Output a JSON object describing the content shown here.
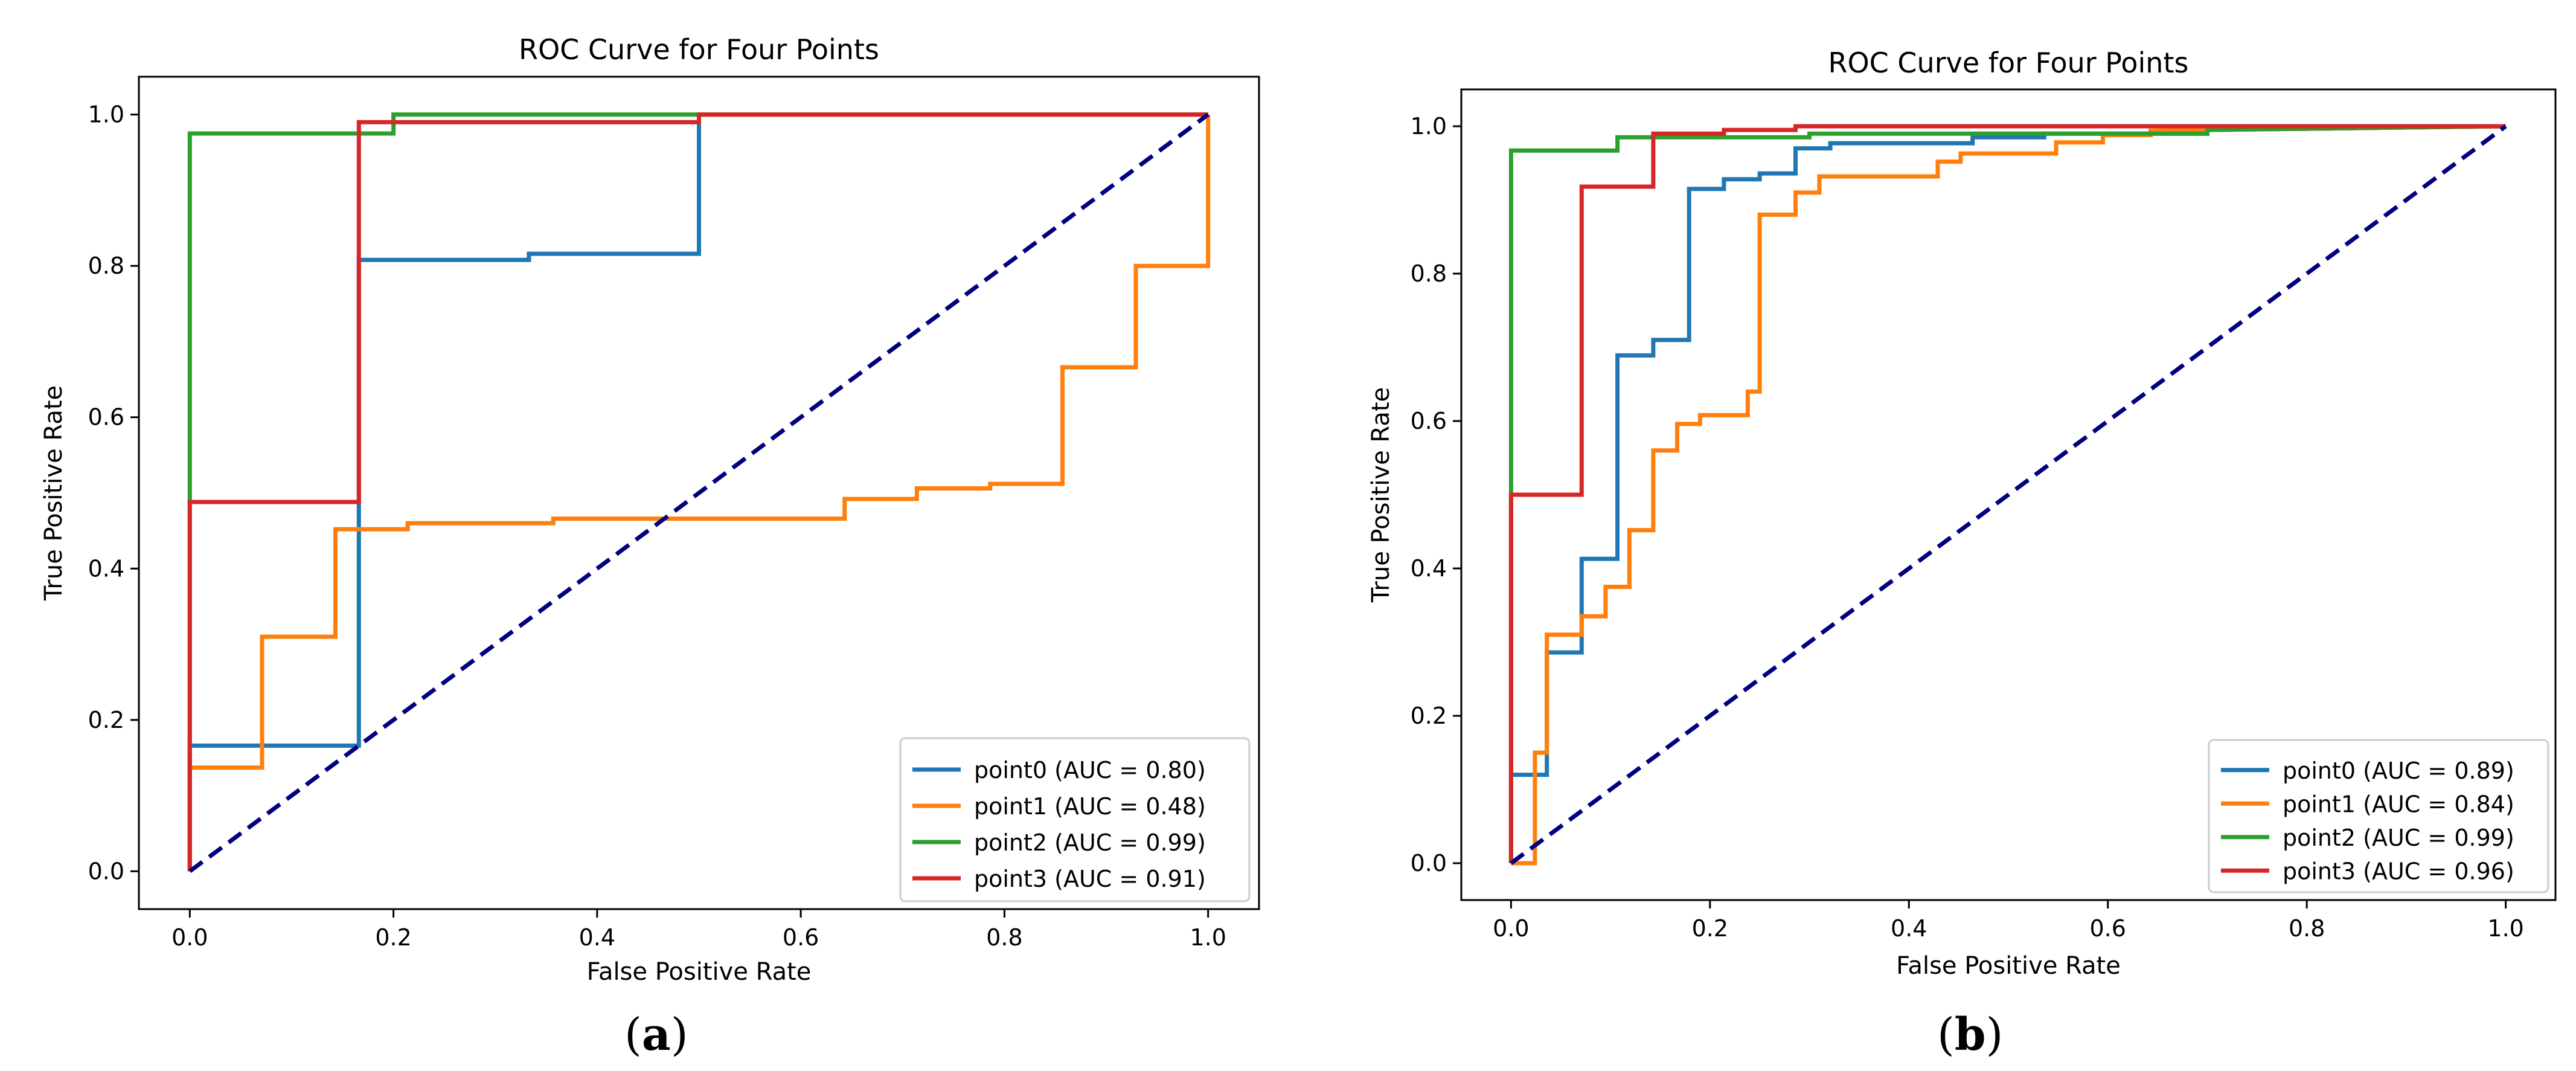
{
  "charts": [
    {
      "caption_letter": "a",
      "title": "ROC Curve for Four Points",
      "xlabel": "False Positive Rate",
      "ylabel": "True Positive Rate"
    },
    {
      "caption_letter": "b",
      "title": "ROC Curve for Four Points",
      "xlabel": "False Positive Rate",
      "ylabel": "True Positive Rate"
    }
  ],
  "chart_data": [
    {
      "type": "line",
      "title": "ROC Curve for Four Points",
      "xlabel": "False Positive Rate",
      "ylabel": "True Positive Rate",
      "xlim": [
        -0.05,
        1.05
      ],
      "ylim": [
        -0.05,
        1.05
      ],
      "xticks": [
        "0.0",
        "0.2",
        "0.4",
        "0.6",
        "0.8",
        "1.0"
      ],
      "yticks": [
        "0.0",
        "0.2",
        "0.4",
        "0.6",
        "0.8",
        "1.0"
      ],
      "grid": false,
      "legend": "lower right",
      "diagonal": {
        "from": [
          0,
          0
        ],
        "to": [
          1,
          1
        ],
        "style": "dashed",
        "color": "#000080"
      },
      "series": [
        {
          "name": "point0 (AUC = 0.80)",
          "color": "#1f77b4",
          "points": [
            [
              0,
              0
            ],
            [
              0,
              0.166
            ],
            [
              0.166,
              0.166
            ],
            [
              0.166,
              0.808
            ],
            [
              0.333,
              0.808
            ],
            [
              0.333,
              0.816
            ],
            [
              0.5,
              0.816
            ],
            [
              0.5,
              1.0
            ],
            [
              1.0,
              1.0
            ]
          ]
        },
        {
          "name": "point1 (AUC = 0.48)",
          "color": "#ff7f0e",
          "points": [
            [
              0,
              0
            ],
            [
              0,
              0.137
            ],
            [
              0.071,
              0.137
            ],
            [
              0.071,
              0.31
            ],
            [
              0.143,
              0.31
            ],
            [
              0.143,
              0.452
            ],
            [
              0.214,
              0.452
            ],
            [
              0.214,
              0.46
            ],
            [
              0.357,
              0.46
            ],
            [
              0.357,
              0.466
            ],
            [
              0.643,
              0.466
            ],
            [
              0.643,
              0.492
            ],
            [
              0.714,
              0.492
            ],
            [
              0.714,
              0.506
            ],
            [
              0.786,
              0.506
            ],
            [
              0.786,
              0.512
            ],
            [
              0.857,
              0.512
            ],
            [
              0.857,
              0.666
            ],
            [
              0.929,
              0.666
            ],
            [
              0.929,
              0.8
            ],
            [
              1.0,
              0.8
            ],
            [
              1.0,
              1.0
            ]
          ]
        },
        {
          "name": "point2 (AUC = 0.99)",
          "color": "#2ca02c",
          "points": [
            [
              0,
              0
            ],
            [
              0,
              0.975
            ],
            [
              0.2,
              0.975
            ],
            [
              0.2,
              1.0
            ],
            [
              1.0,
              1.0
            ]
          ]
        },
        {
          "name": "point3 (AUC = 0.91)",
          "color": "#d62728",
          "points": [
            [
              0,
              0
            ],
            [
              0,
              0.488
            ],
            [
              0.166,
              0.488
            ],
            [
              0.166,
              0.99
            ],
            [
              0.5,
              0.99
            ],
            [
              0.5,
              1.0
            ],
            [
              1.0,
              1.0
            ]
          ]
        }
      ]
    },
    {
      "type": "line",
      "title": "ROC Curve for Four Points",
      "xlabel": "False Positive Rate",
      "ylabel": "True Positive Rate",
      "xlim": [
        -0.05,
        1.05
      ],
      "ylim": [
        -0.05,
        1.05
      ],
      "xticks": [
        "0.0",
        "0.2",
        "0.4",
        "0.6",
        "0.8",
        "1.0"
      ],
      "yticks": [
        "0.0",
        "0.2",
        "0.4",
        "0.6",
        "0.8",
        "1.0"
      ],
      "grid": false,
      "legend": "lower right",
      "diagonal": {
        "from": [
          0,
          0
        ],
        "to": [
          1,
          1
        ],
        "style": "dashed",
        "color": "#000080"
      },
      "series": [
        {
          "name": "point0 (AUC = 0.89)",
          "color": "#1f77b4",
          "points": [
            [
              0,
              0
            ],
            [
              0,
              0.12
            ],
            [
              0.036,
              0.12
            ],
            [
              0.036,
              0.286
            ],
            [
              0.071,
              0.286
            ],
            [
              0.071,
              0.413
            ],
            [
              0.107,
              0.413
            ],
            [
              0.107,
              0.689
            ],
            [
              0.143,
              0.689
            ],
            [
              0.143,
              0.71
            ],
            [
              0.179,
              0.71
            ],
            [
              0.179,
              0.915
            ],
            [
              0.214,
              0.915
            ],
            [
              0.214,
              0.928
            ],
            [
              0.25,
              0.928
            ],
            [
              0.25,
              0.936
            ],
            [
              0.286,
              0.936
            ],
            [
              0.286,
              0.97
            ],
            [
              0.321,
              0.97
            ],
            [
              0.321,
              0.977
            ],
            [
              0.464,
              0.977
            ],
            [
              0.464,
              0.985
            ],
            [
              0.536,
              0.985
            ],
            [
              0.536,
              0.99
            ],
            [
              0.7,
              0.99
            ],
            [
              0.7,
              0.995
            ],
            [
              1.0,
              1.0
            ]
          ]
        },
        {
          "name": "point1 (AUC = 0.84)",
          "color": "#ff7f0e",
          "points": [
            [
              0,
              0
            ],
            [
              0.024,
              0
            ],
            [
              0.024,
              0.15
            ],
            [
              0.036,
              0.15
            ],
            [
              0.036,
              0.31
            ],
            [
              0.071,
              0.31
            ],
            [
              0.071,
              0.335
            ],
            [
              0.095,
              0.335
            ],
            [
              0.095,
              0.375
            ],
            [
              0.119,
              0.375
            ],
            [
              0.119,
              0.452
            ],
            [
              0.143,
              0.452
            ],
            [
              0.143,
              0.56
            ],
            [
              0.167,
              0.56
            ],
            [
              0.167,
              0.596
            ],
            [
              0.19,
              0.596
            ],
            [
              0.19,
              0.608
            ],
            [
              0.238,
              0.608
            ],
            [
              0.238,
              0.64
            ],
            [
              0.25,
              0.64
            ],
            [
              0.25,
              0.88
            ],
            [
              0.286,
              0.88
            ],
            [
              0.286,
              0.91
            ],
            [
              0.31,
              0.91
            ],
            [
              0.31,
              0.932
            ],
            [
              0.429,
              0.932
            ],
            [
              0.429,
              0.952
            ],
            [
              0.452,
              0.952
            ],
            [
              0.452,
              0.963
            ],
            [
              0.548,
              0.963
            ],
            [
              0.548,
              0.978
            ],
            [
              0.595,
              0.978
            ],
            [
              0.595,
              0.988
            ],
            [
              0.643,
              0.988
            ],
            [
              0.643,
              0.994
            ],
            [
              1.0,
              1.0
            ]
          ]
        },
        {
          "name": "point2 (AUC = 0.99)",
          "color": "#2ca02c",
          "points": [
            [
              0,
              0
            ],
            [
              0,
              0.967
            ],
            [
              0.107,
              0.967
            ],
            [
              0.107,
              0.985
            ],
            [
              0.3,
              0.985
            ],
            [
              0.3,
              0.99
            ],
            [
              0.7,
              0.99
            ],
            [
              0.7,
              0.995
            ],
            [
              1.0,
              1.0
            ]
          ]
        },
        {
          "name": "point3 (AUC = 0.96)",
          "color": "#d62728",
          "points": [
            [
              0,
              0
            ],
            [
              0,
              0.5
            ],
            [
              0.071,
              0.5
            ],
            [
              0.071,
              0.918
            ],
            [
              0.143,
              0.918
            ],
            [
              0.143,
              0.99
            ],
            [
              0.214,
              0.99
            ],
            [
              0.214,
              0.995
            ],
            [
              0.286,
              0.995
            ],
            [
              0.286,
              1.0
            ],
            [
              1.0,
              1.0
            ]
          ]
        }
      ]
    }
  ]
}
